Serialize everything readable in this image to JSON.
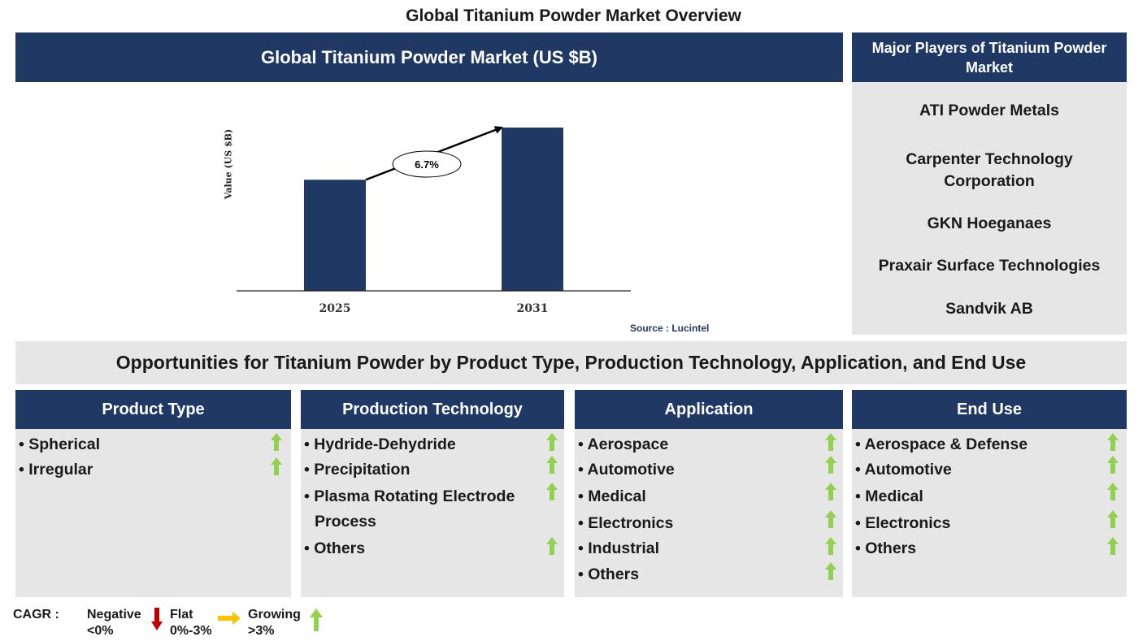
{
  "title": "Global Titanium Powder Market Overview",
  "chart_header": "Global Titanium Powder Market (US $B)",
  "chart_data": {
    "type": "bar",
    "categories": [
      "2025",
      "2031"
    ],
    "values": [
      1.0,
      1.47
    ],
    "ylabel": "Value (US $B)",
    "cagr_label": "6.7%",
    "color": "#1f3864",
    "source": "Source : Lucintel"
  },
  "players": {
    "header": "Major Players of Titanium Powder Market",
    "items": [
      "ATI Powder Metals",
      "Carpenter Technology Corporation",
      "GKN Hoeganaes",
      "Praxair Surface Technologies",
      "Sandvik AB"
    ]
  },
  "opportunities_title": "Opportunities for Titanium Powder by Product Type, Production Technology, Application, and End Use",
  "segments": [
    {
      "header": "Product Type",
      "items": [
        {
          "label": "Spherical",
          "trend": "growing"
        },
        {
          "label": "Irregular",
          "trend": "growing"
        }
      ]
    },
    {
      "header": "Production Technology",
      "items": [
        {
          "label": "Hydride-Dehydride",
          "trend": "growing"
        },
        {
          "label": "Precipitation",
          "trend": "growing"
        },
        {
          "label": "Plasma Rotating Electrode",
          "label2": "Process",
          "trend": "growing"
        },
        {
          "label": "Others",
          "trend": "growing"
        }
      ]
    },
    {
      "header": "Application",
      "items": [
        {
          "label": "Aerospace",
          "trend": "growing"
        },
        {
          "label": "Automotive",
          "trend": "growing"
        },
        {
          "label": "Medical",
          "trend": "growing"
        },
        {
          "label": "Electronics",
          "trend": "growing"
        },
        {
          "label": "Industrial",
          "trend": "growing"
        },
        {
          "label": "Others",
          "trend": "growing"
        }
      ]
    },
    {
      "header": "End Use",
      "items": [
        {
          "label": "Aerospace & Defense",
          "trend": "growing"
        },
        {
          "label": "Automotive",
          "trend": "growing"
        },
        {
          "label": "Medical",
          "trend": "growing"
        },
        {
          "label": "Electronics",
          "trend": "growing"
        },
        {
          "label": "Others",
          "trend": "growing"
        }
      ]
    }
  ],
  "legend": {
    "label": "CAGR :",
    "negative": {
      "name": "Negative",
      "range": "<0%",
      "color": "#c00000"
    },
    "flat": {
      "name": "Flat",
      "range": "0%-3%",
      "color": "#ffc000"
    },
    "growing": {
      "name": "Growing",
      "range": ">3%",
      "color": "#92d050"
    }
  },
  "colors": {
    "navy": "#1f3864",
    "panel_gray": "#e6e6e6",
    "growing_arrow": "#92d050"
  }
}
